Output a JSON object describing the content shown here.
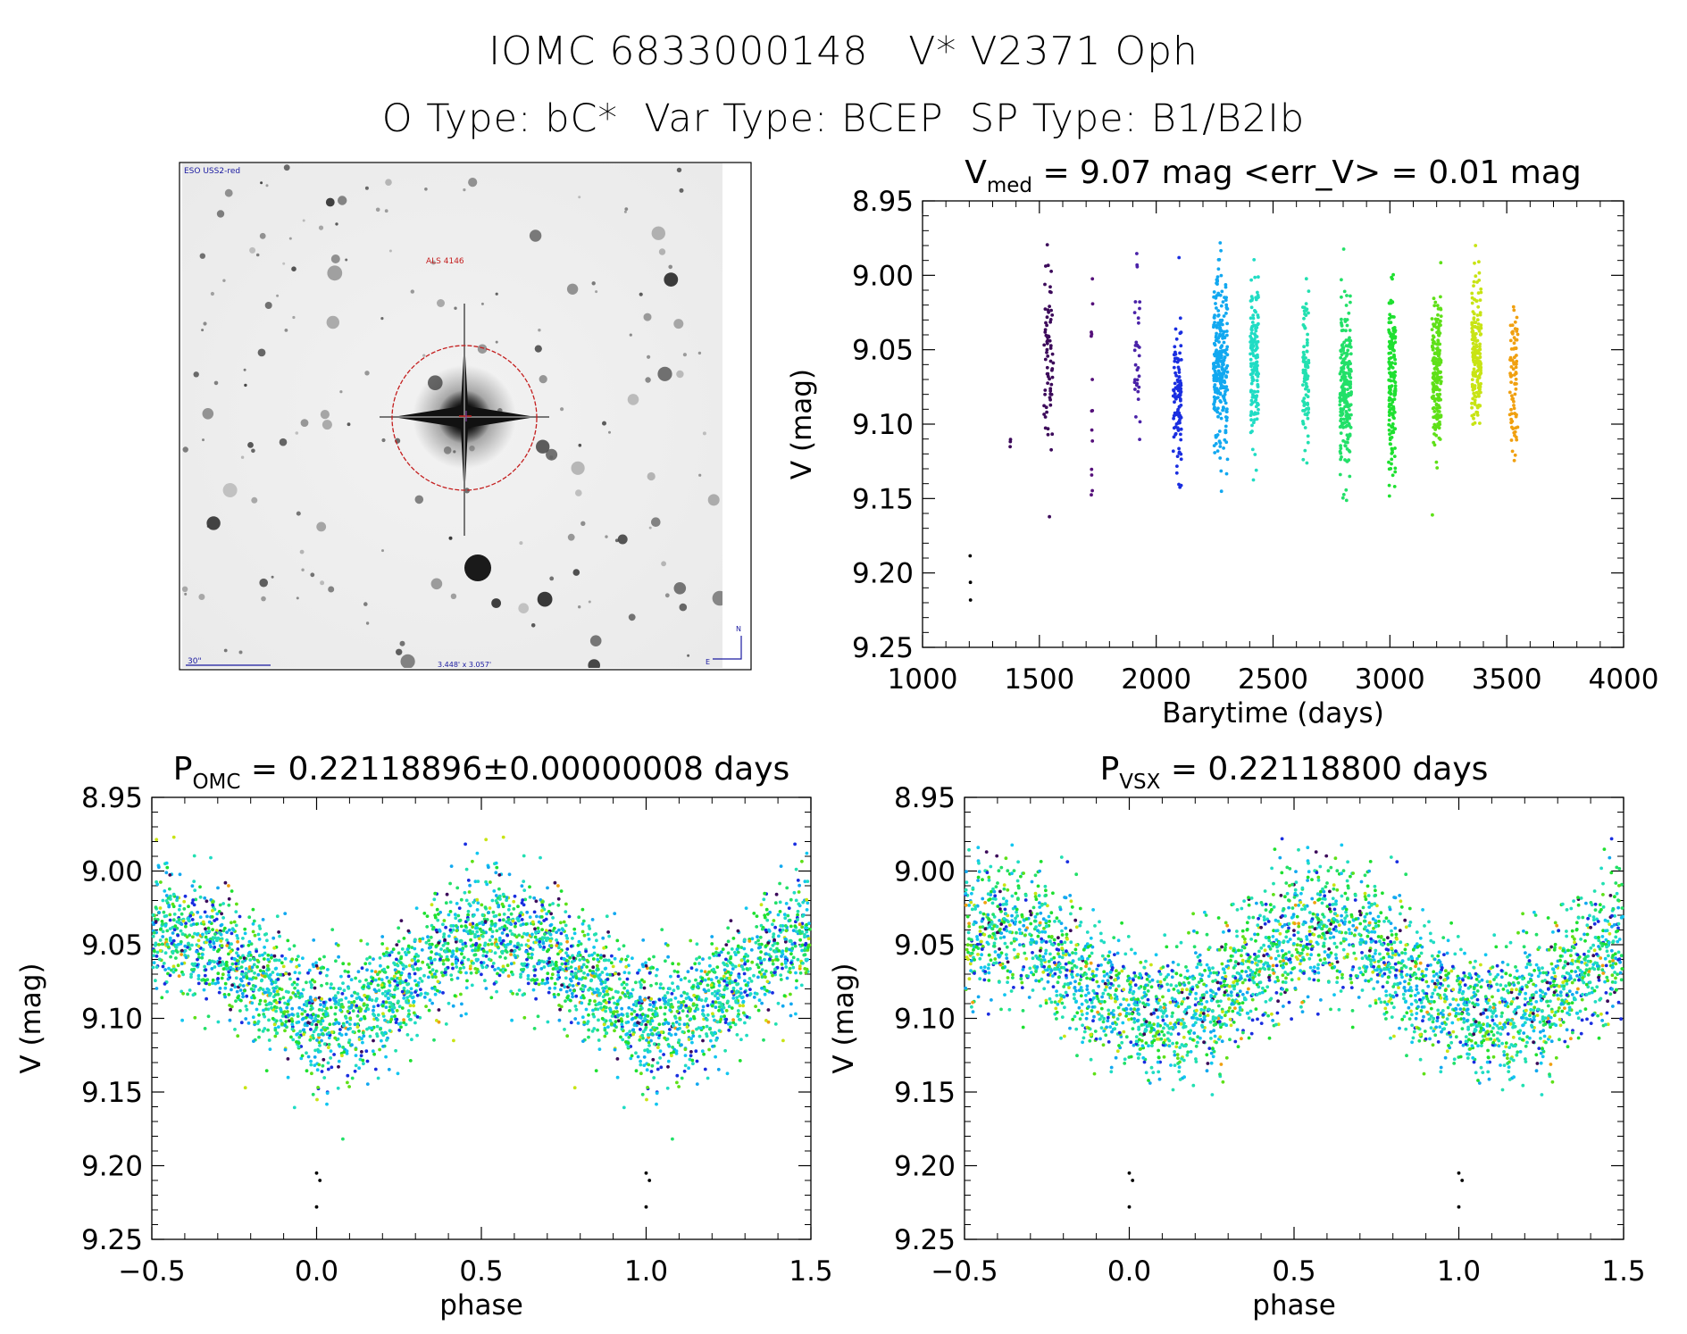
{
  "header": {
    "line1": "IOMC 6833000148   V* V2371 Oph",
    "line2": "O Type: bC*  Var Type: BCEP  SP Type: B1/B2Ib"
  },
  "image_panel": {
    "survey": "ESO USS2-red",
    "object_label": "ALS 4146",
    "scale_label": "30\"",
    "fov_label": "3.448' x 3.057'",
    "north": "N",
    "east": "E"
  },
  "colors": {
    "early": "#3c0a5a",
    "blue": "#1a2ee0",
    "cyan": "#12c6f0",
    "teal": "#20dcc4",
    "green": "#1ee030",
    "yellow": "#d8e414",
    "orange": "#f0a010",
    "circle": "#c41e1e"
  },
  "chart_data": [
    {
      "type": "scatter",
      "id": "lightcurve",
      "title": "V",
      "title_sub": "med",
      "title_rest": " = 9.07 mag <err_V> = 0.01 mag",
      "xlabel": "Barytime (days)",
      "ylabel": "V (mag)",
      "xlim": [
        1000,
        4000
      ],
      "ylim": [
        9.25,
        8.95
      ],
      "xticks": [
        "1000",
        "1500",
        "2000",
        "2500",
        "3000",
        "3500",
        "4000"
      ],
      "yticks": [
        "8.95",
        "9.00",
        "9.05",
        "9.10",
        "9.15",
        "9.20",
        "9.25"
      ],
      "median_V": 9.07,
      "err_V": 0.01,
      "clusters": [
        {
          "t": 1205,
          "width": 3,
          "center": 9.215,
          "spread": 0.012,
          "n": 3,
          "color": "#000000"
        },
        {
          "t": 1375,
          "width": 3,
          "center": 9.112,
          "spread": 0.003,
          "n": 3,
          "color": "#3c0a5a"
        },
        {
          "t": 1540,
          "width": 40,
          "center": 9.055,
          "spread": 0.045,
          "n": 70,
          "color": "#3c0a5a"
        },
        {
          "t": 1725,
          "width": 8,
          "center": 9.08,
          "spread": 0.05,
          "n": 14,
          "color": "#55107a"
        },
        {
          "t": 1920,
          "width": 25,
          "center": 9.06,
          "spread": 0.04,
          "n": 32,
          "color": "#4a22a8"
        },
        {
          "t": 2090,
          "width": 35,
          "center": 9.085,
          "spread": 0.03,
          "n": 110,
          "color": "#1a2ee0"
        },
        {
          "t": 2275,
          "width": 60,
          "center": 9.06,
          "spread": 0.038,
          "n": 260,
          "color": "#12a8f0"
        },
        {
          "t": 2420,
          "width": 35,
          "center": 9.06,
          "spread": 0.035,
          "n": 150,
          "color": "#20dcc4"
        },
        {
          "t": 2640,
          "width": 25,
          "center": 9.07,
          "spread": 0.035,
          "n": 90,
          "color": "#22e0b0"
        },
        {
          "t": 2810,
          "width": 50,
          "center": 9.075,
          "spread": 0.03,
          "n": 220,
          "color": "#22e068"
        },
        {
          "t": 3010,
          "width": 30,
          "center": 9.07,
          "spread": 0.04,
          "n": 160,
          "color": "#1ee030"
        },
        {
          "t": 3200,
          "width": 40,
          "center": 9.065,
          "spread": 0.035,
          "n": 180,
          "color": "#5ee018"
        },
        {
          "t": 3370,
          "width": 40,
          "center": 9.055,
          "spread": 0.03,
          "n": 180,
          "color": "#c8e414"
        },
        {
          "t": 3530,
          "width": 35,
          "center": 9.07,
          "spread": 0.03,
          "n": 80,
          "color": "#f0a010"
        }
      ]
    },
    {
      "type": "scatter",
      "id": "phase-omc",
      "title": "P",
      "title_sub": "OMC",
      "title_rest": " = 0.22118896±0.00000008 days",
      "period_days": 0.22118896,
      "period_err": 8e-08,
      "xlabel": "phase",
      "ylabel": "V (mag)",
      "xlim": [
        -0.5,
        1.5
      ],
      "ylim": [
        9.25,
        8.95
      ],
      "xticks": [
        "−0.5",
        "0.0",
        "0.5",
        "1.0",
        "1.5"
      ],
      "yticks": [
        "8.95",
        "9.00",
        "9.05",
        "9.10",
        "9.15",
        "9.20",
        "9.25"
      ],
      "model": {
        "mean": 9.07,
        "amplitude": 0.03,
        "min_phase": 0.05,
        "scatter": 0.028
      },
      "n_per_cycle": 1700
    },
    {
      "type": "scatter",
      "id": "phase-vsx",
      "title": "P",
      "title_sub": "VSX",
      "title_rest": " = 0.22118800 days",
      "period_days": 0.221188,
      "xlabel": "phase",
      "ylabel": "V (mag)",
      "xlim": [
        -0.5,
        1.5
      ],
      "ylim": [
        9.25,
        8.95
      ],
      "xticks": [
        "−0.5",
        "0.0",
        "0.5",
        "1.0",
        "1.5"
      ],
      "yticks": [
        "8.95",
        "9.00",
        "9.05",
        "9.10",
        "9.15",
        "9.20",
        "9.25"
      ],
      "model": {
        "mean": 9.07,
        "amplitude": 0.03,
        "min_phase": 0.1,
        "scatter": 0.03
      },
      "n_per_cycle": 1700
    }
  ]
}
